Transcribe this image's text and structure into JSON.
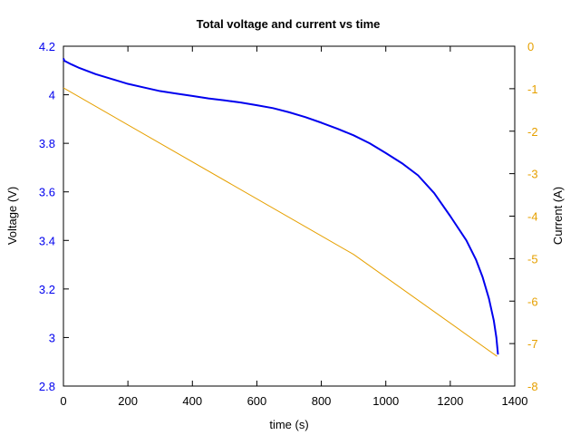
{
  "chart_data": {
    "type": "line",
    "title": "Total voltage and current vs time",
    "xlabel": "time (s)",
    "ylabel_left": "Voltage (V)",
    "ylabel_right": "Current (A)",
    "xlim": [
      0,
      1400
    ],
    "ylim_left": [
      2.8,
      4.2
    ],
    "ylim_right": [
      -8,
      0
    ],
    "x_ticks": [
      "0",
      "200",
      "400",
      "600",
      "800",
      "1000",
      "1200",
      "1400"
    ],
    "y_left_ticks": [
      "2.8",
      "3",
      "3.2",
      "3.4",
      "3.6",
      "3.8",
      "4",
      "4.2"
    ],
    "y_right_ticks": [
      "-8",
      "-7",
      "-6",
      "-5",
      "-4",
      "-3",
      "-2",
      "-1",
      "0"
    ],
    "grid": false,
    "colors": {
      "voltage": "#0000ee",
      "current": "#e6a000",
      "left_axis": "#0000ee",
      "right_axis": "#e6a000"
    },
    "series": [
      {
        "axis": "left",
        "x": [
          0,
          3,
          10,
          25,
          50,
          100,
          150,
          200,
          250,
          300,
          350,
          400,
          450,
          500,
          550,
          600,
          650,
          700,
          750,
          800,
          850,
          900,
          950,
          1000,
          1050,
          1100,
          1150,
          1200,
          1250,
          1280,
          1300,
          1320,
          1335,
          1343,
          1348
        ],
        "y": [
          4.15,
          4.14,
          4.135,
          4.125,
          4.11,
          4.085,
          4.065,
          4.045,
          4.03,
          4.015,
          4.005,
          3.995,
          3.985,
          3.977,
          3.968,
          3.957,
          3.945,
          3.928,
          3.908,
          3.885,
          3.86,
          3.833,
          3.8,
          3.76,
          3.718,
          3.668,
          3.595,
          3.5,
          3.4,
          3.32,
          3.25,
          3.16,
          3.07,
          3.0,
          2.93
        ]
      },
      {
        "axis": "right",
        "x": [
          0,
          900,
          1345
        ],
        "y": [
          -0.98,
          -4.9,
          -7.3
        ]
      }
    ]
  }
}
